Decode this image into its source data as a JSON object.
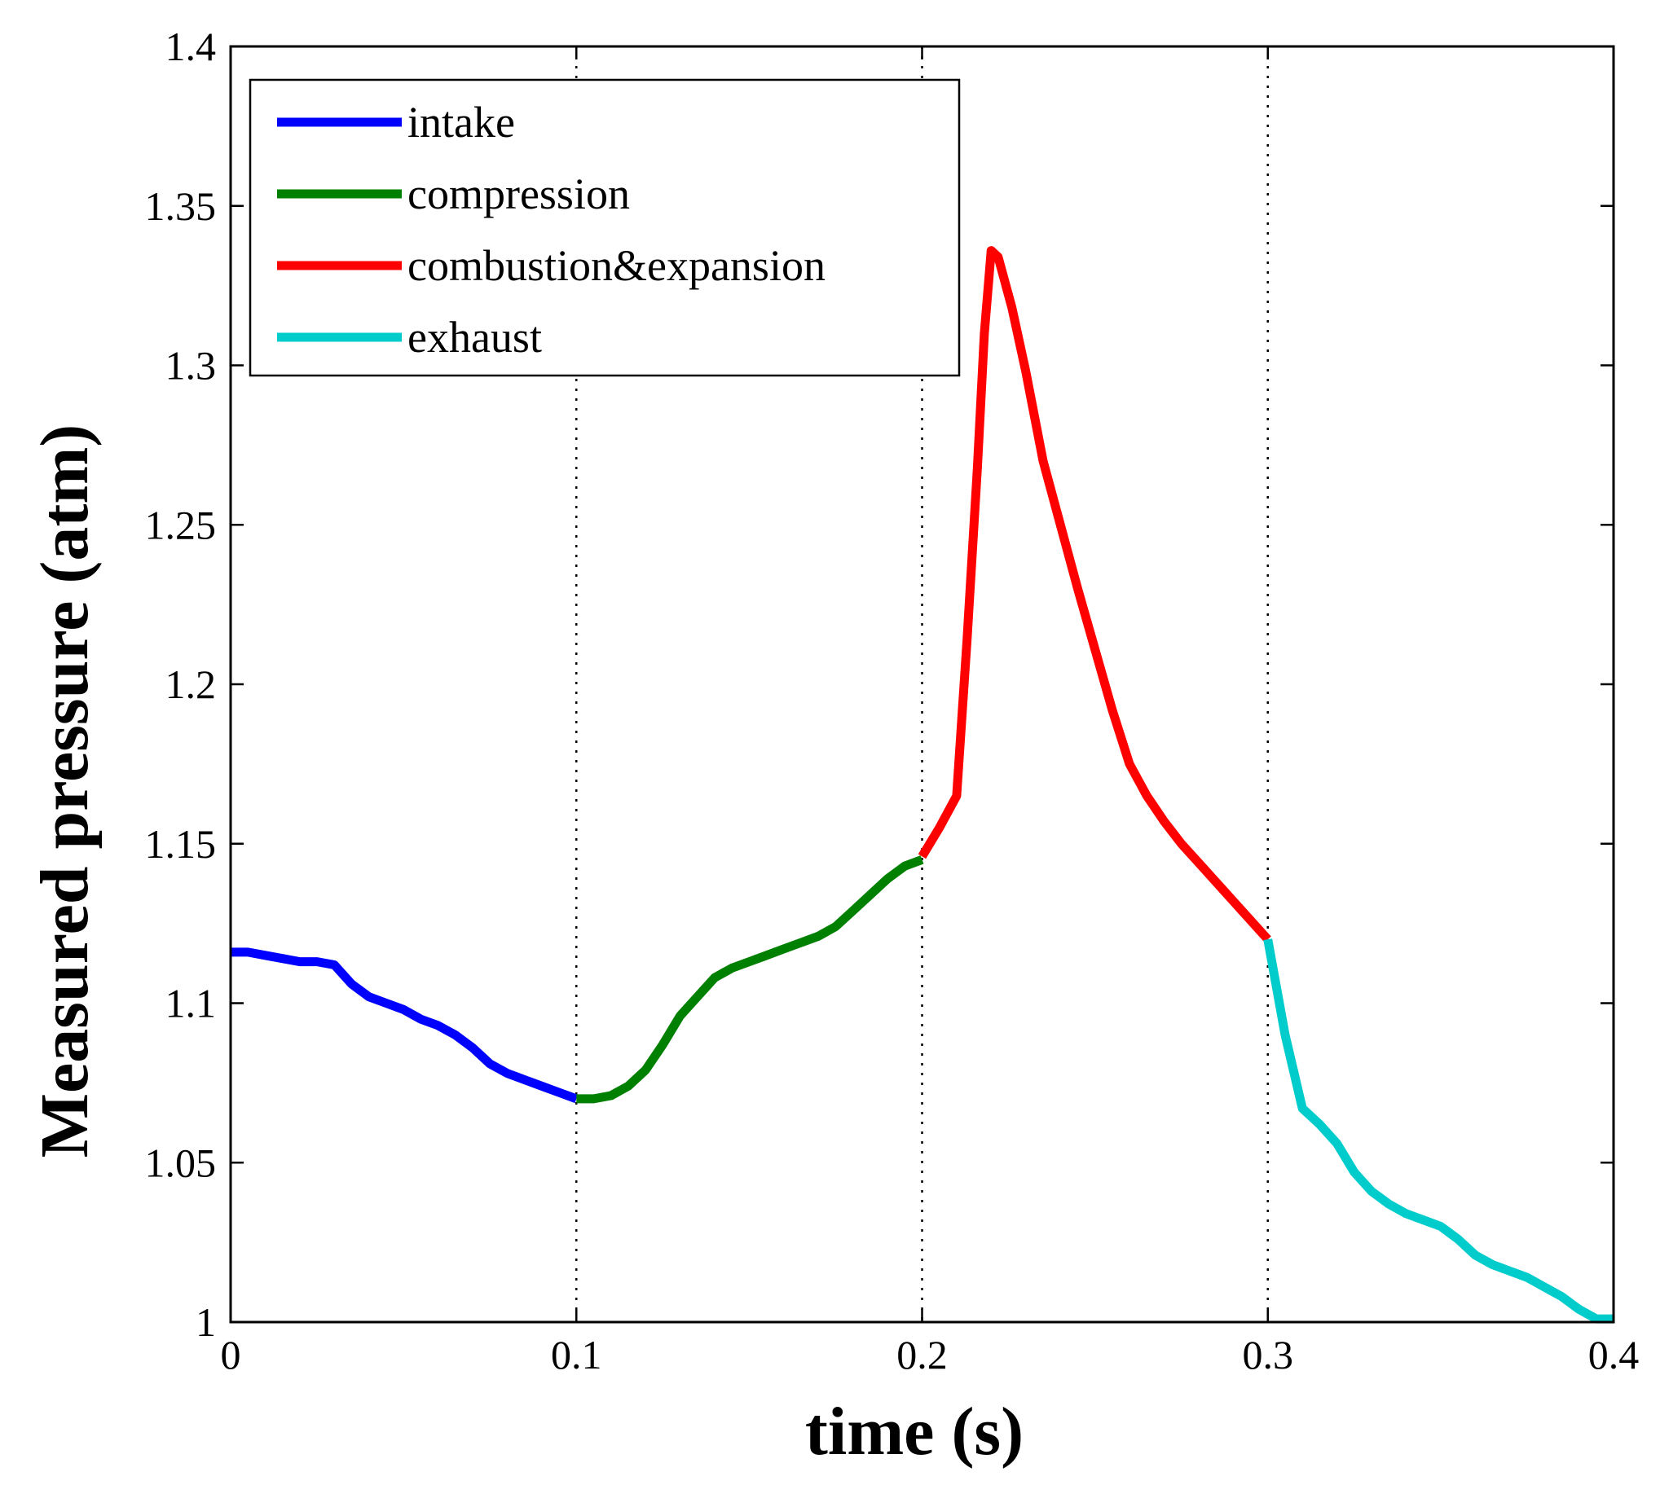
{
  "chart_data": {
    "type": "line",
    "title": "",
    "xlabel": "time (s)",
    "ylabel": "Measured pressure (atm)",
    "xlim": [
      0,
      0.4
    ],
    "ylim": [
      1.0,
      1.4
    ],
    "xticks": [
      0,
      0.1,
      0.2,
      0.3,
      0.4
    ],
    "xtick_labels": [
      "0",
      "0.1",
      "0.2",
      "0.3",
      "0.4"
    ],
    "yticks": [
      1.0,
      1.05,
      1.1,
      1.15,
      1.2,
      1.25,
      1.3,
      1.35,
      1.4
    ],
    "ytick_labels": [
      "1",
      "1.05",
      "1.1",
      "1.15",
      "1.2",
      "1.25",
      "1.3",
      "1.35",
      "1.4"
    ],
    "vertical_lines": [
      0.1,
      0.2,
      0.3
    ],
    "grid": false,
    "legend_position": "top-left",
    "series": [
      {
        "name": "intake",
        "color": "#0000ff",
        "x": [
          0,
          0.005,
          0.01,
          0.015,
          0.02,
          0.025,
          0.03,
          0.035,
          0.04,
          0.045,
          0.05,
          0.055,
          0.06,
          0.065,
          0.07,
          0.075,
          0.08,
          0.085,
          0.09,
          0.095,
          0.1
        ],
        "y": [
          1.116,
          1.116,
          1.115,
          1.114,
          1.113,
          1.113,
          1.112,
          1.106,
          1.102,
          1.1,
          1.098,
          1.095,
          1.093,
          1.09,
          1.086,
          1.081,
          1.078,
          1.076,
          1.074,
          1.072,
          1.07
        ]
      },
      {
        "name": "compression",
        "color": "#008000",
        "x": [
          0.1,
          0.105,
          0.11,
          0.115,
          0.12,
          0.125,
          0.13,
          0.135,
          0.14,
          0.145,
          0.15,
          0.155,
          0.16,
          0.165,
          0.17,
          0.175,
          0.18,
          0.185,
          0.19,
          0.195,
          0.2
        ],
        "y": [
          1.07,
          1.07,
          1.071,
          1.074,
          1.079,
          1.087,
          1.096,
          1.102,
          1.108,
          1.111,
          1.113,
          1.115,
          1.117,
          1.119,
          1.121,
          1.124,
          1.129,
          1.134,
          1.139,
          1.143,
          1.145
        ]
      },
      {
        "name": "combustion&expansion",
        "color": "#ff0000",
        "x": [
          0.2,
          0.205,
          0.21,
          0.213,
          0.216,
          0.218,
          0.22,
          0.222,
          0.226,
          0.23,
          0.235,
          0.24,
          0.245,
          0.25,
          0.255,
          0.26,
          0.265,
          0.27,
          0.275,
          0.28,
          0.285,
          0.29,
          0.295,
          0.3
        ],
        "y": [
          1.146,
          1.155,
          1.165,
          1.214,
          1.268,
          1.31,
          1.336,
          1.334,
          1.318,
          1.298,
          1.27,
          1.25,
          1.23,
          1.211,
          1.192,
          1.175,
          1.165,
          1.157,
          1.15,
          1.144,
          1.138,
          1.132,
          1.126,
          1.12
        ]
      },
      {
        "name": "exhaust",
        "color": "#00cccc",
        "x": [
          0.3,
          0.305,
          0.31,
          0.315,
          0.32,
          0.325,
          0.33,
          0.335,
          0.34,
          0.345,
          0.35,
          0.355,
          0.36,
          0.365,
          0.37,
          0.375,
          0.38,
          0.385,
          0.39,
          0.395,
          0.4
        ],
        "y": [
          1.12,
          1.09,
          1.067,
          1.062,
          1.056,
          1.047,
          1.041,
          1.037,
          1.034,
          1.032,
          1.03,
          1.026,
          1.021,
          1.018,
          1.016,
          1.014,
          1.011,
          1.008,
          1.004,
          1.001,
          1.001
        ]
      }
    ]
  }
}
